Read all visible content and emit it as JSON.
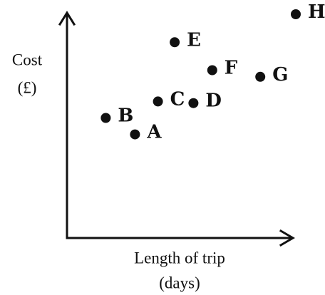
{
  "chart_data": {
    "type": "scatter",
    "title": "",
    "xlabel": "Length of trip",
    "xlabel_unit": "(days)",
    "ylabel": "Cost",
    "ylabel_unit": "(£)",
    "grid": false,
    "legend": "none",
    "xlim": [
      0,
      10
    ],
    "ylim": [
      0,
      10
    ],
    "points": [
      {
        "label": "A",
        "x": 2.3,
        "y": 2.7
      },
      {
        "label": "B",
        "x": 0.9,
        "y": 3.7
      },
      {
        "label": "C",
        "x": 3.4,
        "y": 4.7
      },
      {
        "label": "D",
        "x": 5.1,
        "y": 4.6
      },
      {
        "label": "E",
        "x": 4.2,
        "y": 8.3
      },
      {
        "label": "F",
        "x": 6.0,
        "y": 6.6
      },
      {
        "label": "G",
        "x": 8.3,
        "y": 6.2
      },
      {
        "label": "H",
        "x": 10.0,
        "y": 10.0
      }
    ],
    "color": "#111111"
  }
}
